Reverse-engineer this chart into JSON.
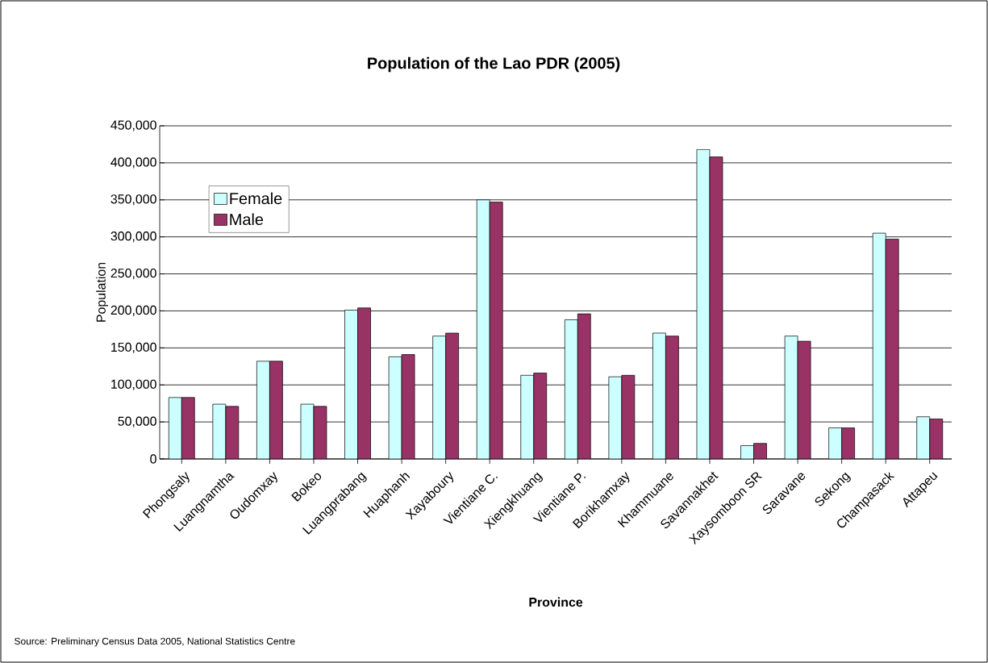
{
  "chart_data": {
    "type": "bar",
    "title": "Population of the Lao PDR (2005)",
    "xlabel": "Province",
    "ylabel": "Population",
    "categories": [
      "Phongsaly",
      "Luangnamtha",
      "Oudomxay",
      "Bokeo",
      "Luangprabang",
      "Huaphanh",
      "Xayaboury",
      "Vientiane C.",
      "Xiengkhuang",
      "Vientiane P.",
      "Borikhamxay",
      "Khammuane",
      "Savannakhet",
      "Xaysomboon SR",
      "Saravane",
      "Sekong",
      "Champasack",
      "Attapeu"
    ],
    "series": [
      {
        "name": "Female",
        "color": "#ccffff",
        "values": [
          83000,
          74000,
          132000,
          74000,
          201000,
          138000,
          166000,
          350000,
          113000,
          188000,
          111000,
          170000,
          418000,
          18000,
          166000,
          42000,
          305000,
          57000
        ]
      },
      {
        "name": "Male",
        "color": "#993366",
        "values": [
          83000,
          71000,
          132000,
          71000,
          204000,
          141000,
          170000,
          347000,
          116000,
          196000,
          113000,
          166000,
          408000,
          21000,
          159000,
          42000,
          297000,
          54000
        ]
      }
    ],
    "ylim": [
      0,
      450000
    ],
    "yticks": [
      {
        "value": 0,
        "label": "0"
      },
      {
        "value": 50000,
        "label": "50,000"
      },
      {
        "value": 100000,
        "label": "100,000"
      },
      {
        "value": 150000,
        "label": "150,000"
      },
      {
        "value": 200000,
        "label": "200,000"
      },
      {
        "value": 250000,
        "label": "250,000"
      },
      {
        "value": 300000,
        "label": "300,000"
      },
      {
        "value": 350000,
        "label": "350,000"
      },
      {
        "value": 400000,
        "label": "400,000"
      },
      {
        "value": 450000,
        "label": "450,000"
      }
    ],
    "grid": "y",
    "legend": "top left",
    "annotations": [
      "Source: Preliminary Census Data 2005, National Statistics Centre"
    ]
  }
}
